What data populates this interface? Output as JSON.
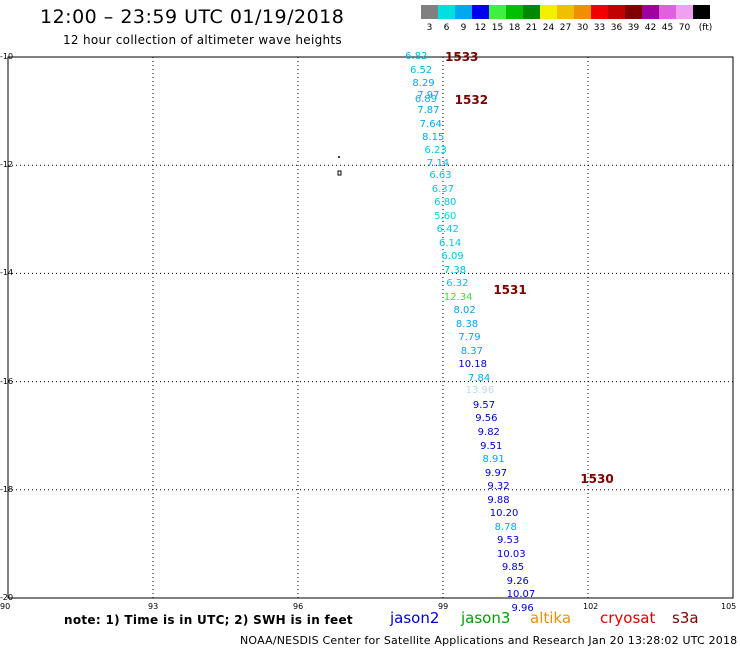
{
  "header": {
    "title": "12:00 – 23:59 UTC 01/19/2018",
    "subtitle": "12 hour collection of altimeter wave heights"
  },
  "legend": {
    "bins": [
      {
        "label": "3",
        "color": "#808080"
      },
      {
        "label": "6",
        "color": "#00e0e0"
      },
      {
        "label": "9",
        "color": "#00a8f0"
      },
      {
        "label": "12",
        "color": "#0000f0"
      },
      {
        "label": "15",
        "color": "#40f040"
      },
      {
        "label": "18",
        "color": "#00c000"
      },
      {
        "label": "21",
        "color": "#008800"
      },
      {
        "label": "24",
        "color": "#f0f000"
      },
      {
        "label": "27",
        "color": "#f0c000"
      },
      {
        "label": "30",
        "color": "#f09000"
      },
      {
        "label": "33",
        "color": "#f00000"
      },
      {
        "label": "36",
        "color": "#c00000"
      },
      {
        "label": "39",
        "color": "#800000"
      },
      {
        "label": "42",
        "color": "#a000a0"
      },
      {
        "label": "45",
        "color": "#e060e0"
      },
      {
        "label": "70",
        "color": "#f0a0f0"
      },
      {
        "label": "(ft)",
        "color": "#000000"
      }
    ]
  },
  "map": {
    "lon_range": [
      90,
      105
    ],
    "lat_range": [
      -20,
      -10
    ],
    "lon_ticks": [
      "90",
      "93",
      "96",
      "99",
      "102",
      "105"
    ],
    "lat_ticks": [
      "-10",
      "-12",
      "-14",
      "-16",
      "-18",
      "-20"
    ],
    "grid": true,
    "grid_lons": [
      93,
      96,
      99,
      102
    ],
    "grid_lats": [
      -12,
      -14,
      -16,
      -18
    ],
    "pass_labels": [
      {
        "label": "1533",
        "lon": 99.0,
        "lat": -10.0
      },
      {
        "label": "1532",
        "lon": 99.2,
        "lat": -10.8
      },
      {
        "label": "1531",
        "lon": 100.0,
        "lat": -14.3
      },
      {
        "label": "1530",
        "lon": 101.8,
        "lat": -17.8
      }
    ],
    "wave_heights": [
      {
        "value": "6.82",
        "lon": 98.3,
        "lat": -10.0,
        "color": "#00b8e8"
      },
      {
        "value": "6.52",
        "lon": 98.4,
        "lat": -10.25,
        "color": "#00b8e8"
      },
      {
        "value": "8.29",
        "lon": 98.45,
        "lat": -10.5,
        "color": "#00a8f0"
      },
      {
        "value": "7.97",
        "lon": 98.55,
        "lat": -10.72,
        "color": "#00a8f0"
      },
      {
        "value": "6.89",
        "lon": 98.5,
        "lat": -10.8,
        "color": "#00b8e8"
      },
      {
        "value": "7.87",
        "lon": 98.55,
        "lat": -11.0,
        "color": "#00a8f0"
      },
      {
        "value": "7.64",
        "lon": 98.6,
        "lat": -11.25,
        "color": "#00a8f0"
      },
      {
        "value": "8.15",
        "lon": 98.65,
        "lat": -11.5,
        "color": "#00a8f0"
      },
      {
        "value": "6.23",
        "lon": 98.7,
        "lat": -11.73,
        "color": "#00c8e8"
      },
      {
        "value": "7.14",
        "lon": 98.75,
        "lat": -11.97,
        "color": "#00b8e8"
      },
      {
        "value": "6.63",
        "lon": 98.8,
        "lat": -12.2,
        "color": "#00c8e8"
      },
      {
        "value": "6.37",
        "lon": 98.85,
        "lat": -12.45,
        "color": "#00c8e8"
      },
      {
        "value": "6.80",
        "lon": 98.9,
        "lat": -12.7,
        "color": "#00c8e8"
      },
      {
        "value": "5.60",
        "lon": 98.9,
        "lat": -12.95,
        "color": "#00d8e0"
      },
      {
        "value": "6.42",
        "lon": 98.95,
        "lat": -13.2,
        "color": "#00c8e8"
      },
      {
        "value": "6.14",
        "lon": 99.0,
        "lat": -13.45,
        "color": "#00c8e8"
      },
      {
        "value": "6.09",
        "lon": 99.05,
        "lat": -13.7,
        "color": "#00c8e8"
      },
      {
        "value": "7.38",
        "lon": 99.1,
        "lat": -13.95,
        "color": "#00b8e8"
      },
      {
        "value": "6.32",
        "lon": 99.15,
        "lat": -14.2,
        "color": "#00c8e8"
      },
      {
        "value": "12.34",
        "lon": 99.1,
        "lat": -14.45,
        "color": "#40e040"
      },
      {
        "value": "8.02",
        "lon": 99.3,
        "lat": -14.7,
        "color": "#00a8f0"
      },
      {
        "value": "8.38",
        "lon": 99.35,
        "lat": -14.95,
        "color": "#00a8f0"
      },
      {
        "value": "7.79",
        "lon": 99.4,
        "lat": -15.2,
        "color": "#00a8f0"
      },
      {
        "value": "8.37",
        "lon": 99.45,
        "lat": -15.45,
        "color": "#00a8f0"
      },
      {
        "value": "10.18",
        "lon": 99.4,
        "lat": -15.7,
        "color": "#0000d8"
      },
      {
        "value": "7.84",
        "lon": 99.6,
        "lat": -15.95,
        "color": "#00a8f0"
      },
      {
        "value": "13.96",
        "lon": 99.55,
        "lat": -16.18,
        "color": "#c0d8f0"
      },
      {
        "value": "9.57",
        "lon": 99.7,
        "lat": -16.45,
        "color": "#0000d8"
      },
      {
        "value": "9.56",
        "lon": 99.75,
        "lat": -16.7,
        "color": "#0000d8"
      },
      {
        "value": "9.82",
        "lon": 99.8,
        "lat": -16.95,
        "color": "#0000d8"
      },
      {
        "value": "9.51",
        "lon": 99.85,
        "lat": -17.2,
        "color": "#0000d8"
      },
      {
        "value": "8.91",
        "lon": 99.9,
        "lat": -17.45,
        "color": "#00a8f0"
      },
      {
        "value": "9.97",
        "lon": 99.95,
        "lat": -17.7,
        "color": "#0000d8"
      },
      {
        "value": "9.32",
        "lon": 100.0,
        "lat": -17.95,
        "color": "#0000d8"
      },
      {
        "value": "9.88",
        "lon": 100.0,
        "lat": -18.2,
        "color": "#0000d8"
      },
      {
        "value": "10.20",
        "lon": 100.05,
        "lat": -18.45,
        "color": "#0000d8"
      },
      {
        "value": "8.78",
        "lon": 100.15,
        "lat": -18.7,
        "color": "#00a8f0"
      },
      {
        "value": "9.53",
        "lon": 100.2,
        "lat": -18.95,
        "color": "#0000d8"
      },
      {
        "value": "10.03",
        "lon": 100.2,
        "lat": -19.2,
        "color": "#0000d8"
      },
      {
        "value": "9.85",
        "lon": 100.3,
        "lat": -19.45,
        "color": "#0000d8"
      },
      {
        "value": "9.26",
        "lon": 100.4,
        "lat": -19.7,
        "color": "#0000d8"
      },
      {
        "value": "10.07",
        "lon": 100.4,
        "lat": -19.95,
        "color": "#0000d8"
      },
      {
        "value": "9.96",
        "lon": 100.5,
        "lat": -20.2,
        "color": "#0000d8"
      }
    ]
  },
  "footer": {
    "note": "note:  1) Time is in UTC;  2) SWH is in feet",
    "satellites": [
      {
        "name": "jason2",
        "color": "#0000d0"
      },
      {
        "name": "jason3",
        "color": "#00a000"
      },
      {
        "name": "altika",
        "color": "#f09000"
      },
      {
        "name": "cryosat",
        "color": "#e00000"
      },
      {
        "name": "s3a",
        "color": "#800000"
      }
    ],
    "credit": "NOAA/NESDIS Center for Satellite Applications and Research     Jan 20 13:28:02 UTC 2018"
  }
}
